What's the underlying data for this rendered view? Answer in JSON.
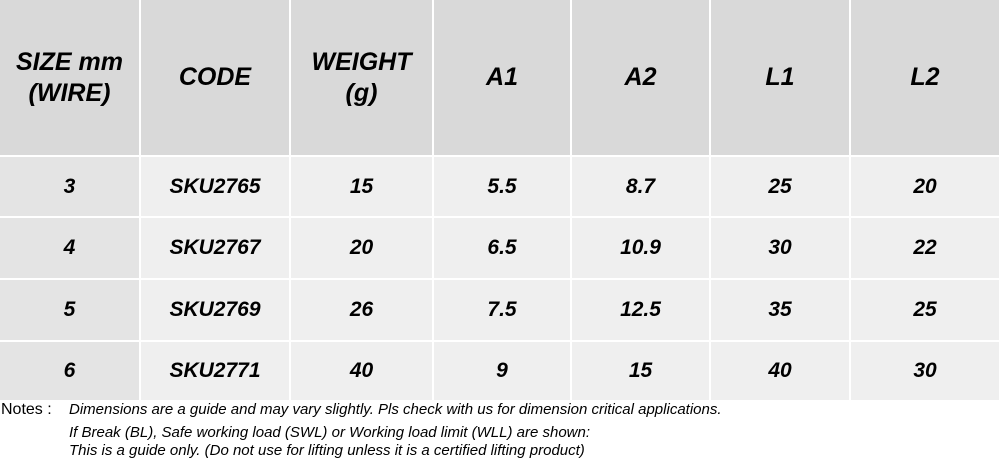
{
  "table": {
    "header": [
      [
        "SIZE mm",
        "(WIRE)"
      ],
      [
        "CODE"
      ],
      [
        "WEIGHT",
        "(g)"
      ],
      [
        "A1"
      ],
      [
        "A2"
      ],
      [
        "L1"
      ],
      [
        "L2"
      ]
    ],
    "rows": [
      [
        "3",
        "SKU2765",
        "15",
        "5.5",
        "8.7",
        "25",
        "20"
      ],
      [
        "4",
        "SKU2767",
        "20",
        "6.5",
        "10.9",
        "30",
        "22"
      ],
      [
        "5",
        "SKU2769",
        "26",
        "7.5",
        "12.5",
        "35",
        "25"
      ],
      [
        "6",
        "SKU2771",
        "40",
        "9",
        "15",
        "40",
        "30"
      ]
    ]
  },
  "notes": {
    "label": "Notes :",
    "lines": [
      "Dimensions are a guide and may vary slightly. Pls check with us for dimension critical applications.",
      "If Break (BL), Safe working load (SWL) or Working load limit (WLL) are shown:",
      "This is a guide only. (Do not use for lifting unless it is a certified lifting product)"
    ]
  }
}
